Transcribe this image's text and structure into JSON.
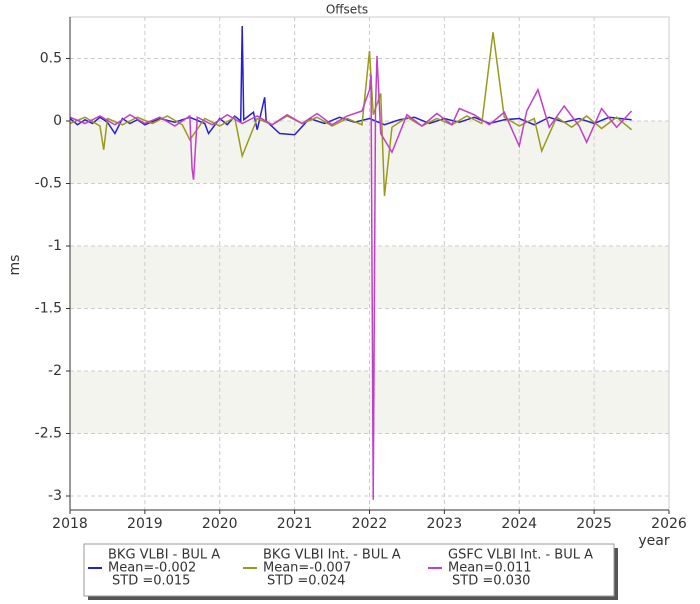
{
  "chart_data": {
    "type": "line",
    "title": "Offsets",
    "xlabel": "year",
    "ylabel": "ms",
    "xlim": [
      2018,
      2026
    ],
    "ylim": [
      -3.112,
      0.832
    ],
    "xticks": [
      2018,
      2019,
      2020,
      2021,
      2022,
      2023,
      2024,
      2025,
      2026
    ],
    "yticks": [
      0.5,
      0,
      -0.5,
      -1,
      -1.5,
      -2,
      -2.5,
      -3
    ],
    "grid": true,
    "shaded_bands": true,
    "legend": "bottom",
    "series": [
      {
        "name": "BKG VLBI - BUL A",
        "mean": "Mean=-0.002",
        "std": "STD =0.015",
        "color": "#2a1fd0",
        "x": [
          2018.0,
          2018.1,
          2018.2,
          2018.3,
          2018.4,
          2018.5,
          2018.6,
          2018.7,
          2018.8,
          2018.9,
          2019.0,
          2019.2,
          2019.4,
          2019.6,
          2019.8,
          2019.85,
          2020.0,
          2020.1,
          2020.2,
          2020.28,
          2020.3,
          2020.32,
          2020.45,
          2020.5,
          2020.6,
          2020.62,
          2020.8,
          2021.0,
          2021.2,
          2021.4,
          2021.6,
          2021.8,
          2022.0,
          2022.2,
          2022.4,
          2022.6,
          2022.8,
          2023.0,
          2023.2,
          2023.4,
          2023.6,
          2023.8,
          2024.0,
          2024.2,
          2024.4,
          2024.6,
          2024.8,
          2025.0,
          2025.2,
          2025.5
        ],
        "values": [
          0.02,
          -0.03,
          0.01,
          -0.02,
          0.03,
          -0.01,
          -0.1,
          0.02,
          -0.02,
          0.01,
          -0.03,
          0.02,
          -0.01,
          0.03,
          -0.02,
          -0.1,
          0.02,
          -0.03,
          0.04,
          0.0,
          0.76,
          0.01,
          0.07,
          -0.07,
          0.19,
          0.0,
          -0.1,
          -0.11,
          0.02,
          -0.02,
          0.03,
          -0.01,
          0.02,
          -0.03,
          0.01,
          0.03,
          -0.02,
          0.02,
          -0.01,
          0.03,
          -0.02,
          0.01,
          0.02,
          -0.03,
          0.03,
          -0.01,
          0.02,
          -0.02,
          0.03,
          0.01
        ]
      },
      {
        "name": "BKG VLBI Int. - BUL A",
        "mean": "Mean=-0.007",
        "std": "STD =0.024",
        "color": "#9a9a1a",
        "x": [
          2018.0,
          2018.2,
          2018.4,
          2018.45,
          2018.5,
          2018.7,
          2018.9,
          2019.1,
          2019.3,
          2019.5,
          2019.6,
          2019.8,
          2020.0,
          2020.2,
          2020.3,
          2020.5,
          2020.7,
          2020.9,
          2021.1,
          2021.3,
          2021.5,
          2021.7,
          2021.9,
          2022.0,
          2022.05,
          2022.15,
          2022.2,
          2022.3,
          2022.5,
          2022.7,
          2022.9,
          2023.1,
          2023.3,
          2023.5,
          2023.65,
          2023.8,
          2024.0,
          2024.2,
          2024.3,
          2024.5,
          2024.7,
          2024.9,
          2025.1,
          2025.3,
          2025.5
        ],
        "values": [
          -0.02,
          0.03,
          -0.04,
          -0.23,
          0.02,
          -0.03,
          0.03,
          -0.02,
          0.04,
          -0.03,
          -0.15,
          0.02,
          -0.04,
          0.03,
          -0.28,
          0.02,
          -0.03,
          0.04,
          -0.02,
          0.03,
          -0.04,
          0.02,
          -0.03,
          0.56,
          0.05,
          0.22,
          -0.6,
          -0.05,
          0.03,
          -0.04,
          0.02,
          -0.03,
          0.04,
          -0.02,
          0.71,
          0.03,
          -0.04,
          0.02,
          -0.24,
          0.03,
          -0.05,
          0.04,
          -0.06,
          0.03,
          -0.07
        ]
      },
      {
        "name": "GSFC VLBI Int. - BUL A",
        "mean": "Mean=0.011",
        "std": "STD =0.030",
        "color": "#c040c8",
        "x": [
          2018.0,
          2018.2,
          2018.4,
          2018.6,
          2018.8,
          2019.0,
          2019.2,
          2019.4,
          2019.6,
          2019.63,
          2019.65,
          2019.7,
          2019.9,
          2020.1,
          2020.3,
          2020.5,
          2020.7,
          2020.9,
          2021.1,
          2021.3,
          2021.5,
          2021.7,
          2021.9,
          2022.0,
          2022.02,
          2022.05,
          2022.08,
          2022.1,
          2022.15,
          2022.3,
          2022.5,
          2022.7,
          2022.9,
          2023.1,
          2023.2,
          2023.4,
          2023.6,
          2023.8,
          2024.0,
          2024.1,
          2024.25,
          2024.4,
          2024.6,
          2024.8,
          2024.9,
          2025.1,
          2025.3,
          2025.5
        ],
        "values": [
          0.03,
          -0.02,
          0.04,
          -0.03,
          0.05,
          -0.02,
          0.03,
          -0.04,
          0.04,
          -0.38,
          -0.47,
          0.03,
          -0.03,
          0.05,
          -0.02,
          0.04,
          -0.03,
          0.05,
          -0.02,
          0.06,
          -0.03,
          0.04,
          0.08,
          0.25,
          0.37,
          -3.03,
          0.1,
          0.52,
          -0.1,
          -0.25,
          0.05,
          -0.04,
          0.06,
          -0.03,
          0.1,
          0.05,
          -0.03,
          0.07,
          -0.2,
          0.08,
          0.25,
          -0.05,
          0.12,
          -0.04,
          -0.17,
          0.1,
          -0.05,
          0.08
        ]
      }
    ]
  }
}
